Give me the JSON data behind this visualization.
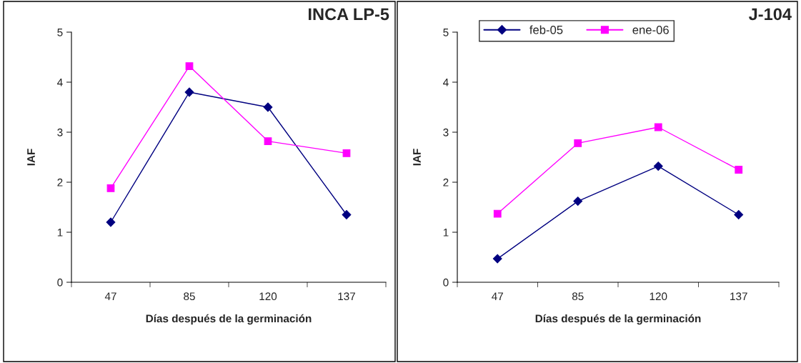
{
  "chart_data": [
    {
      "type": "line",
      "title": "INCA LP-5",
      "xlabel": "Días después de la germinación",
      "ylabel": "IAF",
      "categories": [
        "47",
        "85",
        "120",
        "137"
      ],
      "ylim": [
        0,
        5
      ],
      "yticks": [
        0,
        1,
        2,
        3,
        4,
        5
      ],
      "grid": false,
      "legend": false,
      "series": [
        {
          "color": "#000080",
          "marker": "diamond",
          "values": [
            1.2,
            3.8,
            3.5,
            1.35
          ]
        },
        {
          "color": "#ff00ff",
          "marker": "square",
          "values": [
            1.88,
            4.32,
            2.82,
            2.58
          ]
        }
      ]
    },
    {
      "type": "line",
      "title": "J-104",
      "xlabel": "Días después de la germinación",
      "ylabel": "IAF",
      "categories": [
        "47",
        "85",
        "120",
        "137"
      ],
      "ylim": [
        0,
        5
      ],
      "yticks": [
        0,
        1,
        2,
        3,
        4,
        5
      ],
      "grid": false,
      "legend": "top left",
      "series": [
        {
          "name": "feb-05",
          "color": "#000080",
          "marker": "diamond",
          "values": [
            0.47,
            1.62,
            2.32,
            1.35
          ]
        },
        {
          "name": "ene-06",
          "color": "#ff00ff",
          "marker": "square",
          "values": [
            1.37,
            2.78,
            3.1,
            2.25
          ]
        }
      ]
    }
  ]
}
